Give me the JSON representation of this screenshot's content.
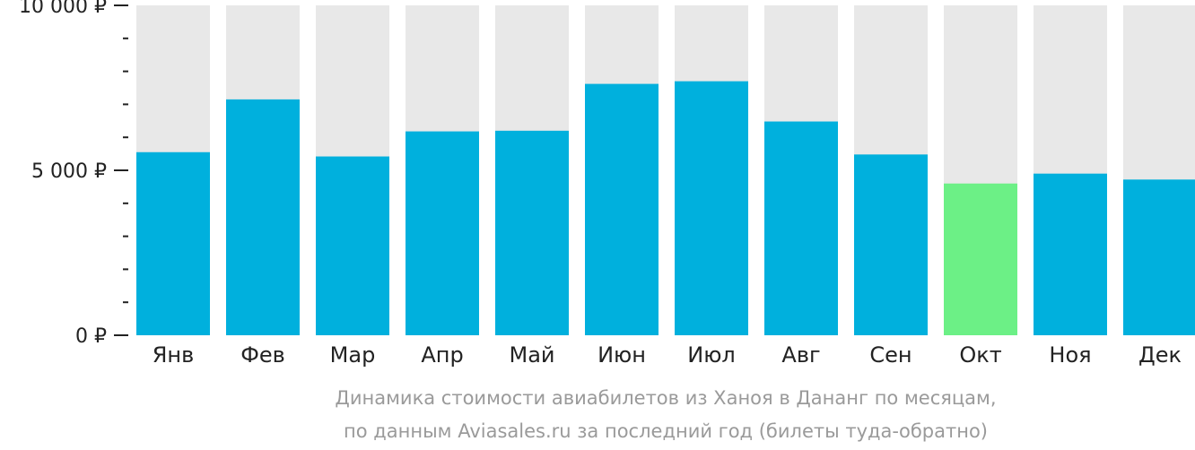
{
  "chart_data": {
    "type": "bar",
    "categories": [
      "Янв",
      "Фев",
      "Мар",
      "Апр",
      "Май",
      "Июн",
      "Июл",
      "Авг",
      "Сен",
      "Окт",
      "Ноя",
      "Дек"
    ],
    "values": [
      5550,
      7150,
      5420,
      6180,
      6200,
      7620,
      7700,
      6480,
      5480,
      4600,
      4900,
      4720
    ],
    "highlight_index": 9,
    "ylim": [
      0,
      10000
    ],
    "yticks": [
      {
        "value": 0,
        "label": "0 ₽"
      },
      {
        "value": 5000,
        "label": "5 000 ₽"
      },
      {
        "value": 10000,
        "label": "10 000 ₽"
      }
    ],
    "minor_tick_step": 1000,
    "caption_lines": [
      "Динамика стоимости авиабилетов из Ханоя в Дананг по месяцам,",
      "по данным Aviasales.ru за последний год (билеты туда-обратно)"
    ],
    "colors": {
      "bar": "#00b0dd",
      "highlight": "#6cf086",
      "track": "#e8e8e8",
      "axis": "#222222",
      "caption": "#9a9a9a"
    }
  }
}
